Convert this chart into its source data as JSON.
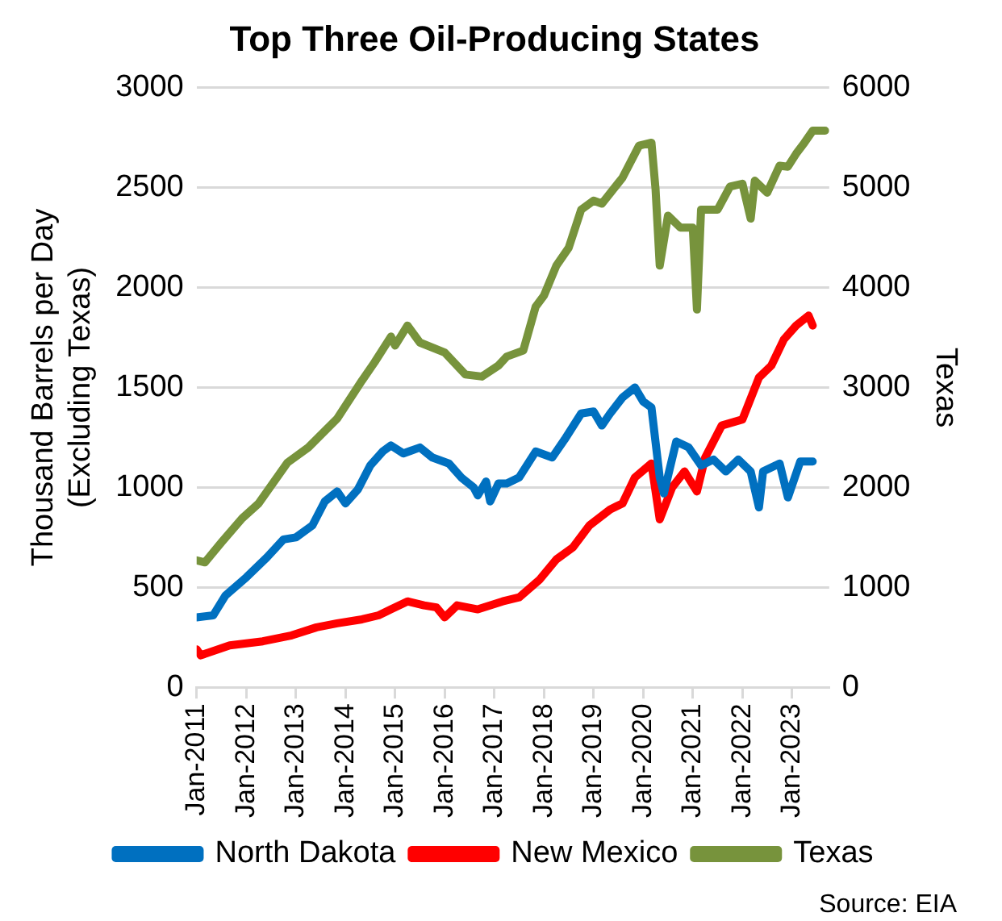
{
  "chart_data": {
    "type": "line",
    "title": "Top Three Oil-Producing States",
    "ylabel": "Thousand Barrels per Day\n(Excluding Texas)",
    "y2label": "Texas",
    "xlim": [
      "2011-01",
      "2023-10"
    ],
    "xticks": [
      {
        "value": "2011-01",
        "label": "Jan-2011"
      },
      {
        "value": "2012-01",
        "label": "Jan-2012"
      },
      {
        "value": "2013-01",
        "label": "Jan-2013"
      },
      {
        "value": "2014-01",
        "label": "Jan-2014"
      },
      {
        "value": "2015-01",
        "label": "Jan-2015"
      },
      {
        "value": "2016-01",
        "label": "Jan-2016"
      },
      {
        "value": "2017-01",
        "label": "Jan-2017"
      },
      {
        "value": "2018-01",
        "label": "Jan-2018"
      },
      {
        "value": "2019-01",
        "label": "Jan-2019"
      },
      {
        "value": "2020-01",
        "label": "Jan-2020"
      },
      {
        "value": "2021-01",
        "label": "Jan-2021"
      },
      {
        "value": "2022-01",
        "label": "Jan-2022"
      },
      {
        "value": "2023-01",
        "label": "Jan-2023"
      }
    ],
    "ylim": [
      0,
      3000
    ],
    "yticks": [
      0,
      500,
      1000,
      1500,
      2000,
      2500,
      3000
    ],
    "y2lim": [
      0,
      6000
    ],
    "y2ticks": [
      0,
      1000,
      2000,
      3000,
      4000,
      5000,
      6000
    ],
    "grid": "y",
    "legend": "bottom",
    "annotations": [
      "Source: EIA"
    ],
    "series": [
      {
        "name": "North Dakota",
        "color": "#0070c0",
        "x": [
          "2011-01",
          "2011-05",
          "2011-08",
          "2012-01",
          "2012-06",
          "2012-10",
          "2013-01",
          "2013-05",
          "2013-08",
          "2013-11",
          "2014-01",
          "2014-04",
          "2014-07",
          "2014-10",
          "2014-12",
          "2015-03",
          "2015-07",
          "2015-10",
          "2016-02",
          "2016-05",
          "2016-08",
          "2016-09",
          "2016-11",
          "2016-12",
          "2017-02",
          "2017-04",
          "2017-07",
          "2017-11",
          "2018-03",
          "2018-06",
          "2018-10",
          "2019-01",
          "2019-03",
          "2019-05",
          "2019-08",
          "2019-11",
          "2020-01",
          "2020-03",
          "2020-05",
          "2020-06",
          "2020-09",
          "2020-12",
          "2021-03",
          "2021-06",
          "2021-09",
          "2021-12",
          "2022-03",
          "2022-05",
          "2022-06",
          "2022-10",
          "2022-12",
          "2023-03",
          "2023-06"
        ],
        "values": [
          350,
          360,
          460,
          550,
          650,
          740,
          750,
          810,
          930,
          980,
          920,
          990,
          1110,
          1180,
          1210,
          1170,
          1200,
          1150,
          1120,
          1050,
          1000,
          960,
          1030,
          930,
          1020,
          1020,
          1050,
          1180,
          1150,
          1240,
          1370,
          1380,
          1310,
          1370,
          1450,
          1500,
          1430,
          1400,
          1050,
          970,
          1230,
          1200,
          1110,
          1140,
          1080,
          1140,
          1080,
          900,
          1080,
          1120,
          950,
          1130,
          1130
        ]
      },
      {
        "name": "New Mexico",
        "color": "#ff0000",
        "x": [
          "2011-01",
          "2011-02",
          "2011-09",
          "2012-05",
          "2012-12",
          "2013-06",
          "2013-11",
          "2014-05",
          "2014-09",
          "2014-12",
          "2015-04",
          "2015-08",
          "2015-11",
          "2016-01",
          "2016-04",
          "2016-09",
          "2017-03",
          "2017-07",
          "2017-12",
          "2018-04",
          "2018-08",
          "2018-12",
          "2019-05",
          "2019-08",
          "2019-11",
          "2020-03",
          "2020-05",
          "2020-08",
          "2020-11",
          "2021-02",
          "2021-04",
          "2021-08",
          "2022-01",
          "2022-05",
          "2022-08",
          "2022-11",
          "2023-02",
          "2023-05",
          "2023-06"
        ],
        "values": [
          190,
          160,
          210,
          230,
          260,
          300,
          320,
          340,
          360,
          390,
          430,
          410,
          400,
          350,
          410,
          390,
          430,
          450,
          540,
          640,
          700,
          810,
          890,
          920,
          1050,
          1120,
          840,
          1000,
          1080,
          980,
          1150,
          1310,
          1340,
          1550,
          1610,
          1740,
          1810,
          1860,
          1810
        ]
      },
      {
        "name": "Texas",
        "color": "#77933c",
        "axis": "y2",
        "x": [
          "2011-01",
          "2011-03",
          "2011-07",
          "2011-12",
          "2012-04",
          "2012-11",
          "2013-04",
          "2013-11",
          "2014-05",
          "2014-08",
          "2014-12",
          "2015-01",
          "2015-04",
          "2015-07",
          "2016-01",
          "2016-06",
          "2016-10",
          "2017-02",
          "2017-04",
          "2017-08",
          "2017-11",
          "2018-01",
          "2018-04",
          "2018-07",
          "2018-10",
          "2019-01",
          "2019-03",
          "2019-08",
          "2019-12",
          "2020-03",
          "2020-04",
          "2020-05",
          "2020-07",
          "2020-10",
          "2021-01",
          "2021-02",
          "2021-03",
          "2021-07",
          "2021-10",
          "2022-01",
          "2022-03",
          "2022-04",
          "2022-07",
          "2022-10",
          "2022-12",
          "2023-02",
          "2023-04",
          "2023-06",
          "2023-09"
        ],
        "values": [
          1270,
          1250,
          1450,
          1690,
          1840,
          2250,
          2400,
          2690,
          3070,
          3250,
          3510,
          3420,
          3620,
          3450,
          3350,
          3130,
          3110,
          3220,
          3310,
          3370,
          3810,
          3920,
          4220,
          4400,
          4780,
          4870,
          4840,
          5100,
          5420,
          5450,
          4980,
          4220,
          4720,
          4600,
          4600,
          3780,
          4780,
          4780,
          5010,
          5040,
          4690,
          5070,
          4950,
          5220,
          5210,
          5340,
          5450,
          5570,
          5570
        ]
      }
    ]
  }
}
